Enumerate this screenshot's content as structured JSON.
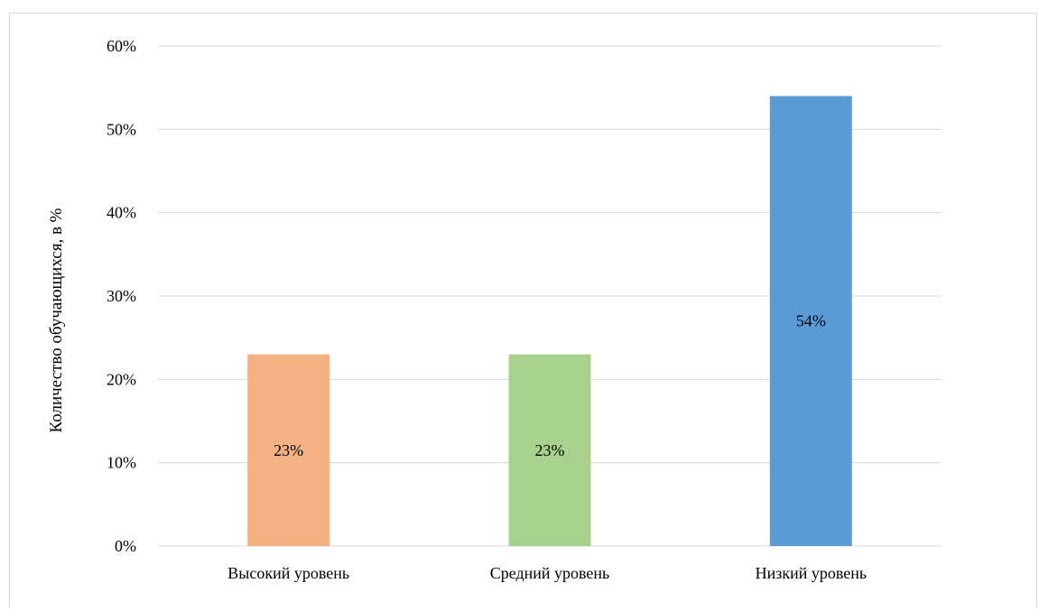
{
  "chart_data": {
    "type": "bar",
    "categories": [
      "Высокий уровень",
      "Средний уровень",
      "Низкий уровень"
    ],
    "values": [
      23,
      23,
      54
    ],
    "data_labels": [
      "23%",
      "23%",
      "54%"
    ],
    "colors": [
      "#f4b183",
      "#a9d18e",
      "#5b9bd5"
    ],
    "title": "",
    "xlabel": "",
    "ylabel": "Количество обучающихся, в %",
    "ylim": [
      0,
      60
    ],
    "yticks": [
      0,
      10,
      20,
      30,
      40,
      50,
      60
    ],
    "ytick_labels": [
      "0%",
      "10%",
      "20%",
      "30%",
      "40%",
      "50%",
      "60%"
    ],
    "grid": true,
    "legend": "none"
  }
}
